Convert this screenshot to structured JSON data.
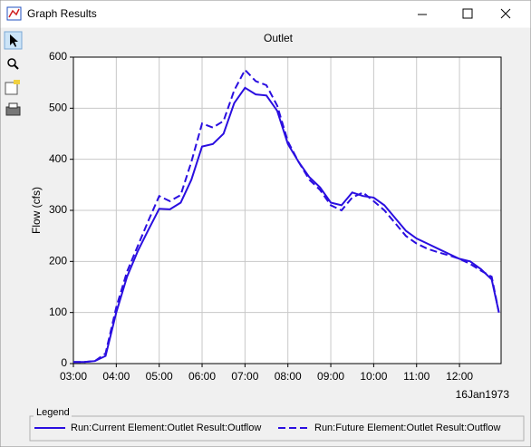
{
  "window": {
    "title": "Graph Results"
  },
  "chart_data": {
    "type": "line",
    "title": "Outlet",
    "y_label": "Flow (cfs)",
    "x_note": "16Jan1973",
    "legend_title": "Legend",
    "x": [
      3,
      3.25,
      3.5,
      3.75,
      4,
      4.25,
      4.5,
      4.75,
      5,
      5.25,
      5.5,
      5.75,
      6,
      6.25,
      6.5,
      6.75,
      7,
      7.25,
      7.5,
      7.75,
      8,
      8.25,
      8.5,
      8.75,
      9,
      9.25,
      9.5,
      9.75,
      10,
      10.25,
      10.5,
      10.75,
      11,
      11.25,
      11.5,
      11.75,
      12,
      12.25,
      12.5,
      12.75,
      12.92
    ],
    "series": [
      {
        "name": "Run:Current Element:Outlet Result:Outflow",
        "color": "#2a0ee0",
        "style": "solid",
        "values": [
          3,
          3,
          5,
          15,
          100,
          170,
          220,
          262,
          303,
          302,
          315,
          360,
          425,
          430,
          450,
          510,
          540,
          527,
          525,
          495,
          430,
          395,
          365,
          345,
          315,
          310,
          335,
          328,
          325,
          310,
          285,
          260,
          245,
          235,
          225,
          215,
          205,
          200,
          185,
          165,
          100
        ]
      },
      {
        "name": "Run:Future Element:Outlet Result:Outflow",
        "color": "#2a0ee0",
        "style": "dashed",
        "values": [
          3,
          3,
          5,
          20,
          110,
          180,
          230,
          280,
          328,
          318,
          330,
          395,
          470,
          462,
          475,
          535,
          575,
          553,
          545,
          505,
          435,
          395,
          360,
          340,
          310,
          300,
          325,
          335,
          318,
          300,
          275,
          250,
          235,
          225,
          218,
          212,
          205,
          195,
          182,
          170,
          100
        ]
      }
    ],
    "xlim": [
      3,
      12.97
    ],
    "ylim": [
      0,
      600
    ],
    "xticks": [
      {
        "value": 3,
        "label": "03:00"
      },
      {
        "value": 4,
        "label": "04:00"
      },
      {
        "value": 5,
        "label": "05:00"
      },
      {
        "value": 6,
        "label": "06:00"
      },
      {
        "value": 7,
        "label": "07:00"
      },
      {
        "value": 8,
        "label": "08:00"
      },
      {
        "value": 9,
        "label": "09:00"
      },
      {
        "value": 10,
        "label": "10:00"
      },
      {
        "value": 11,
        "label": "11:00"
      },
      {
        "value": 12,
        "label": "12:00"
      }
    ],
    "yticks": [
      0,
      100,
      200,
      300,
      400,
      500,
      600
    ],
    "grid": true
  }
}
